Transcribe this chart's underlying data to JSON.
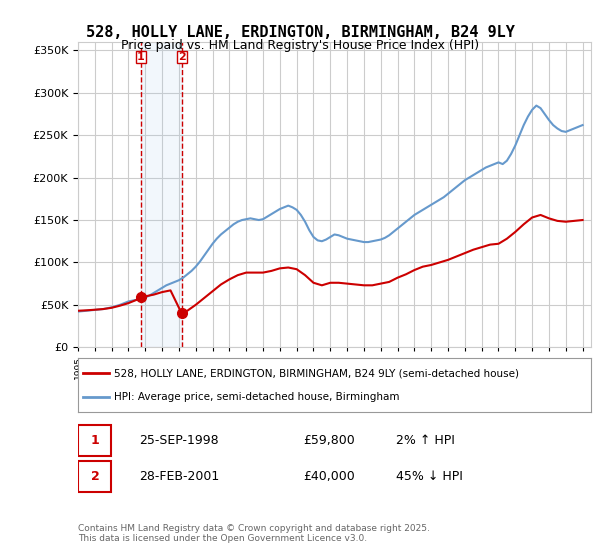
{
  "title": "528, HOLLY LANE, ERDINGTON, BIRMINGHAM, B24 9LY",
  "subtitle": "Price paid vs. HM Land Registry's House Price Index (HPI)",
  "ylabel_ticks": [
    "£0",
    "£50K",
    "£100K",
    "£150K",
    "£200K",
    "£250K",
    "£300K",
    "£350K"
  ],
  "ylim": [
    0,
    360000
  ],
  "xlim_start": 1995.0,
  "xlim_end": 2025.5,
  "background_color": "#ffffff",
  "plot_bg_color": "#ffffff",
  "grid_color": "#cccccc",
  "hpi_line_color": "#6699cc",
  "price_line_color": "#cc0000",
  "sale1_date": "25-SEP-1998",
  "sale1_price": "£59,800",
  "sale1_pct": "2% ↑ HPI",
  "sale2_date": "28-FEB-2001",
  "sale2_price": "£40,000",
  "sale2_pct": "45% ↓ HPI",
  "sale1_year": 1998.73,
  "sale1_value": 59800,
  "sale2_year": 2001.16,
  "sale2_value": 40000,
  "legend_label1": "528, HOLLY LANE, ERDINGTON, BIRMINGHAM, B24 9LY (semi-detached house)",
  "legend_label2": "HPI: Average price, semi-detached house, Birmingham",
  "footnote": "Contains HM Land Registry data © Crown copyright and database right 2025.\nThis data is licensed under the Open Government Licence v3.0.",
  "hpi_data_x": [
    1995.0,
    1995.25,
    1995.5,
    1995.75,
    1996.0,
    1996.25,
    1996.5,
    1996.75,
    1997.0,
    1997.25,
    1997.5,
    1997.75,
    1998.0,
    1998.25,
    1998.5,
    1998.75,
    1999.0,
    1999.25,
    1999.5,
    1999.75,
    2000.0,
    2000.25,
    2000.5,
    2000.75,
    2001.0,
    2001.25,
    2001.5,
    2001.75,
    2002.0,
    2002.25,
    2002.5,
    2002.75,
    2003.0,
    2003.25,
    2003.5,
    2003.75,
    2004.0,
    2004.25,
    2004.5,
    2004.75,
    2005.0,
    2005.25,
    2005.5,
    2005.75,
    2006.0,
    2006.25,
    2006.5,
    2006.75,
    2007.0,
    2007.25,
    2007.5,
    2007.75,
    2008.0,
    2008.25,
    2008.5,
    2008.75,
    2009.0,
    2009.25,
    2009.5,
    2009.75,
    2010.0,
    2010.25,
    2010.5,
    2010.75,
    2011.0,
    2011.25,
    2011.5,
    2011.75,
    2012.0,
    2012.25,
    2012.5,
    2012.75,
    2013.0,
    2013.25,
    2013.5,
    2013.75,
    2014.0,
    2014.25,
    2014.5,
    2014.75,
    2015.0,
    2015.25,
    2015.5,
    2015.75,
    2016.0,
    2016.25,
    2016.5,
    2016.75,
    2017.0,
    2017.25,
    2017.5,
    2017.75,
    2018.0,
    2018.25,
    2018.5,
    2018.75,
    2019.0,
    2019.25,
    2019.5,
    2019.75,
    2020.0,
    2020.25,
    2020.5,
    2020.75,
    2021.0,
    2021.25,
    2021.5,
    2021.75,
    2022.0,
    2022.25,
    2022.5,
    2022.75,
    2023.0,
    2023.25,
    2023.5,
    2023.75,
    2024.0,
    2024.25,
    2024.5,
    2024.75,
    2025.0
  ],
  "hpi_data_y": [
    42000,
    42500,
    43000,
    43500,
    44000,
    44500,
    45000,
    46000,
    47000,
    48500,
    50000,
    52000,
    54000,
    55000,
    56000,
    57000,
    58500,
    61000,
    64000,
    67000,
    70000,
    73000,
    75000,
    77000,
    79000,
    82000,
    86000,
    90000,
    95000,
    101000,
    108000,
    115000,
    122000,
    128000,
    133000,
    137000,
    141000,
    145000,
    148000,
    150000,
    151000,
    152000,
    151000,
    150000,
    151000,
    154000,
    157000,
    160000,
    163000,
    165000,
    167000,
    165000,
    162000,
    156000,
    148000,
    138000,
    130000,
    126000,
    125000,
    127000,
    130000,
    133000,
    132000,
    130000,
    128000,
    127000,
    126000,
    125000,
    124000,
    124000,
    125000,
    126000,
    127000,
    129000,
    132000,
    136000,
    140000,
    144000,
    148000,
    152000,
    156000,
    159000,
    162000,
    165000,
    168000,
    171000,
    174000,
    177000,
    181000,
    185000,
    189000,
    193000,
    197000,
    200000,
    203000,
    206000,
    209000,
    212000,
    214000,
    216000,
    218000,
    216000,
    220000,
    228000,
    238000,
    250000,
    262000,
    272000,
    280000,
    285000,
    282000,
    275000,
    268000,
    262000,
    258000,
    255000,
    254000,
    256000,
    258000,
    260000,
    262000
  ],
  "price_data_x": [
    1995.0,
    1995.5,
    1996.0,
    1996.5,
    1997.0,
    1997.5,
    1998.0,
    1998.5,
    1998.73,
    1999.0,
    1999.5,
    2000.0,
    2000.5,
    2001.16,
    2001.5,
    2002.0,
    2002.5,
    2003.0,
    2003.5,
    2004.0,
    2004.5,
    2005.0,
    2005.5,
    2006.0,
    2006.5,
    2007.0,
    2007.5,
    2008.0,
    2008.5,
    2009.0,
    2009.5,
    2010.0,
    2010.5,
    2011.0,
    2011.5,
    2012.0,
    2012.5,
    2013.0,
    2013.5,
    2014.0,
    2014.5,
    2015.0,
    2015.5,
    2016.0,
    2016.5,
    2017.0,
    2017.5,
    2018.0,
    2018.5,
    2019.0,
    2019.5,
    2020.0,
    2020.5,
    2021.0,
    2021.5,
    2022.0,
    2022.5,
    2023.0,
    2023.5,
    2024.0,
    2024.5,
    2025.0
  ],
  "price_data_y": [
    43000,
    43500,
    44200,
    45000,
    46500,
    49000,
    52000,
    56000,
    59800,
    60000,
    62000,
    65000,
    67000,
    40000,
    43000,
    50000,
    58000,
    66000,
    74000,
    80000,
    85000,
    88000,
    88000,
    88000,
    90000,
    93000,
    94000,
    92000,
    85000,
    76000,
    73000,
    76000,
    76000,
    75000,
    74000,
    73000,
    73000,
    75000,
    77000,
    82000,
    86000,
    91000,
    95000,
    97000,
    100000,
    103000,
    107000,
    111000,
    115000,
    118000,
    121000,
    122000,
    128000,
    136000,
    145000,
    153000,
    156000,
    152000,
    149000,
    148000,
    149000,
    150000
  ],
  "shaded_x1": 1998.73,
  "shaded_x2": 2001.16,
  "vline1_x": 1998.73,
  "vline2_x": 2001.16
}
